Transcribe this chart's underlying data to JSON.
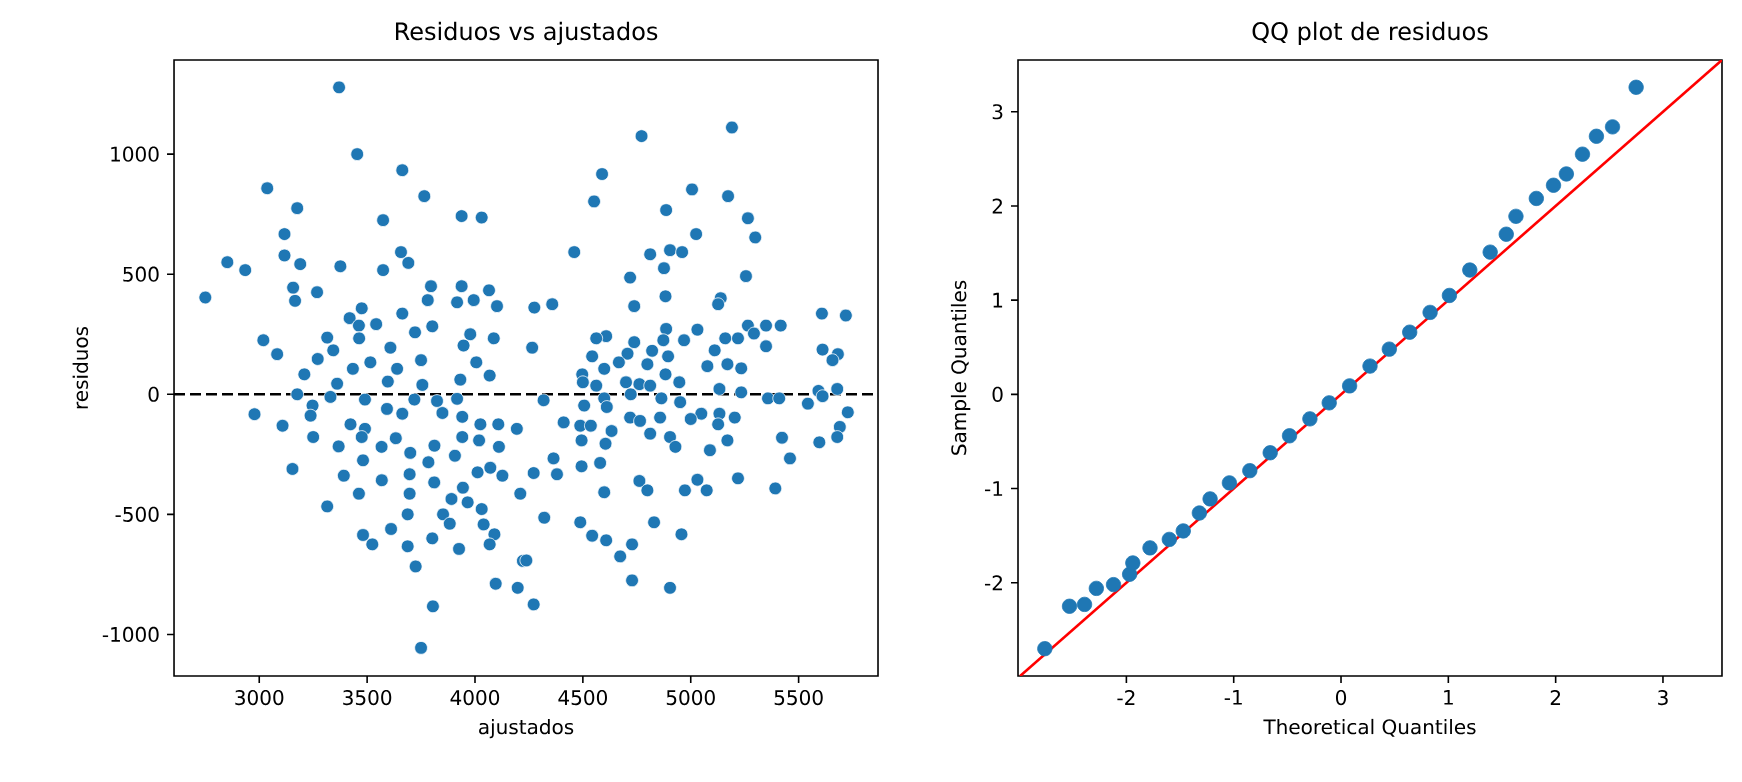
{
  "chart_data": [
    {
      "type": "scatter",
      "title": "Residuos vs ajustados",
      "xlabel": "ajustados",
      "ylabel": "residuos",
      "color": "#1f77b4",
      "marker": "circle",
      "xlim": [
        2605,
        5868
      ],
      "ylim": [
        -1173,
        1392
      ],
      "xticks": [
        3000,
        3500,
        4000,
        4500,
        5000,
        5500
      ],
      "yticks": [
        -1000,
        -500,
        0,
        500,
        1000
      ],
      "ref_lines": [
        {
          "axis": "y",
          "value": 0,
          "color": "#000000",
          "line_style": "dashed"
        }
      ],
      "x": [
        3370,
        3454,
        3663,
        3037,
        3765,
        3176,
        3938,
        4031,
        3574,
        3117,
        3117,
        2852,
        2935,
        3190,
        3376,
        3574,
        3657,
        3691,
        2750,
        3157,
        3166,
        3268,
        3796,
        3938,
        4065,
        4102,
        3781,
        3917,
        3994,
        3475,
        3419,
        3663,
        3462,
        3542,
        3722,
        3802,
        3978,
        4087,
        3019,
        3083,
        3315,
        3343,
        3463,
        3608,
        3750,
        3947,
        3271,
        3209,
        3434,
        3515,
        3639,
        4006,
        4068,
        3932,
        3596,
        3361,
        3176,
        3330,
        3756,
        2978,
        3108,
        3247,
        3238,
        3490,
        3592,
        3663,
        3719,
        3824,
        3917,
        3849,
        3941,
        3250,
        3423,
        3490,
        3475,
        3633,
        3812,
        3941,
        4025,
        4108,
        4019,
        4194,
        4111,
        3368,
        3567,
        3700,
        3784,
        3907,
        3481,
        3154,
        3392,
        3568,
        3697,
        3811,
        3944,
        4012,
        4071,
        4127,
        4210,
        3462,
        3697,
        3891,
        3966,
        4031,
        3315,
        3688,
        3852,
        3481,
        3611,
        3524,
        3802,
        3883,
        4040,
        4090,
        4068,
        3688,
        3926,
        3725,
        4222,
        4096,
        4198,
        3805,
        3750,
        4772,
        5191,
        4589,
        4552,
        5006,
        5173,
        4886,
        5265,
        5299,
        5025,
        4460,
        4812,
        4904,
        4960,
        4876,
        4719,
        5256,
        4883,
        4738,
        5139,
        5127,
        4275,
        4358,
        5608,
        5719,
        4265,
        5265,
        5349,
        5417,
        5293,
        5349,
        5031,
        4886,
        4608,
        4562,
        4969,
        5160,
        5219,
        4873,
        4738,
        4821,
        4707,
        4543,
        4667,
        5111,
        4895,
        4799,
        5077,
        5170,
        5234,
        5611,
        5682,
        5657,
        4599,
        4497,
        4883,
        4500,
        4562,
        4700,
        4762,
        4812,
        4947,
        5133,
        5234,
        5592,
        5679,
        4722,
        4864,
        4318,
        4599,
        4506,
        4951,
        4611,
        5358,
        5410,
        5543,
        5611,
        5728,
        5133,
        5204,
        4719,
        5049,
        4411,
        4488,
        4537,
        4765,
        4858,
        5000,
        5127,
        4633,
        4812,
        4904,
        4929,
        4494,
        4605,
        5170,
        5423,
        5691,
        5679,
        5596,
        5089,
        5460,
        4364,
        4272,
        4380,
        4580,
        4494,
        4762,
        4799,
        4599,
        4973,
        5031,
        5074,
        5219,
        5392,
        4321,
        4238,
        4272,
        4488,
        4543,
        4608,
        4830,
        4957,
        4673,
        4728,
        4728,
        4904
      ],
      "values": [
        1278,
        1000,
        933,
        858,
        825,
        775,
        742,
        736,
        725,
        667,
        578,
        550,
        517,
        542,
        533,
        517,
        592,
        547,
        403,
        444,
        389,
        425,
        450,
        450,
        433,
        367,
        392,
        383,
        392,
        358,
        317,
        336,
        286,
        292,
        258,
        283,
        250,
        233,
        225,
        167,
        236,
        183,
        233,
        194,
        142,
        203,
        147,
        83,
        106,
        133,
        106,
        133,
        78,
        61,
        53,
        44,
        0,
        -11,
        39,
        -83,
        -131,
        -47,
        -89,
        -22,
        -61,
        -81,
        -22,
        -28,
        -19,
        -78,
        -94,
        -178,
        -125,
        -144,
        -178,
        -183,
        -214,
        -178,
        -125,
        -125,
        -192,
        -144,
        -219,
        -217,
        -219,
        -244,
        -283,
        -256,
        -275,
        -311,
        -339,
        -358,
        -333,
        -367,
        -389,
        -325,
        -306,
        -339,
        -414,
        -414,
        -414,
        -436,
        -450,
        -478,
        -467,
        -500,
        -500,
        -586,
        -561,
        -625,
        -600,
        -539,
        -542,
        -583,
        -625,
        -633,
        -644,
        -717,
        -694,
        -789,
        -806,
        -883,
        -1056,
        1075,
        1111,
        917,
        803,
        853,
        825,
        767,
        733,
        653,
        667,
        592,
        583,
        600,
        592,
        525,
        486,
        492,
        408,
        367,
        400,
        375,
        361,
        375,
        336,
        328,
        194,
        286,
        286,
        286,
        253,
        200,
        269,
        272,
        242,
        233,
        225,
        233,
        233,
        225,
        217,
        181,
        169,
        158,
        133,
        183,
        158,
        125,
        117,
        125,
        108,
        186,
        167,
        142,
        106,
        83,
        83,
        50,
        36,
        50,
        42,
        36,
        50,
        22,
        8,
        14,
        22,
        0,
        -17,
        -25,
        -17,
        -47,
        -33,
        -53,
        -17,
        -17,
        -39,
        -8,
        -75,
        -81,
        -97,
        -97,
        -81,
        -117,
        -131,
        -131,
        -111,
        -97,
        -103,
        -125,
        -153,
        -164,
        -178,
        -219,
        -192,
        -206,
        -192,
        -181,
        -136,
        -178,
        -200,
        -233,
        -267,
        -267,
        -328,
        -333,
        -286,
        -300,
        -361,
        -400,
        -408,
        -400,
        -356,
        -400,
        -350,
        -392,
        -514,
        -692,
        -875,
        -533,
        -589,
        -608,
        -533,
        -583,
        -675,
        -625,
        -775,
        -806
      ]
    },
    {
      "type": "scatter",
      "title": "QQ plot de residuos",
      "xlabel": "Theoretical Quantiles",
      "ylabel": "Sample Quantiles",
      "xlim": [
        -3.01,
        3.55
      ],
      "ylim": [
        -2.99,
        3.55
      ],
      "xticks": [
        -2,
        -1,
        0,
        1,
        2,
        3
      ],
      "yticks": [
        -2,
        -1,
        0,
        1,
        2,
        3
      ],
      "series": [
        {
          "type": "scatter",
          "color": "#1f77b4",
          "marker": "circle",
          "x": [
            -2.76,
            -2.53,
            -2.39,
            -2.28,
            -2.12,
            -1.97,
            -1.94,
            -1.78,
            -1.6,
            -1.47,
            -1.32,
            -1.22,
            -1.04,
            -0.85,
            -0.66,
            -0.48,
            -0.29,
            -0.11,
            0.08,
            0.27,
            0.45,
            0.64,
            0.83,
            1.01,
            1.2,
            1.39,
            1.54,
            1.63,
            1.82,
            1.98,
            2.1,
            2.25,
            2.38,
            2.53,
            2.75
          ],
          "values": [
            -2.7,
            -2.25,
            -2.23,
            -2.06,
            -2.02,
            -1.91,
            -1.79,
            -1.63,
            -1.54,
            -1.45,
            -1.26,
            -1.11,
            -0.94,
            -0.81,
            -0.62,
            -0.44,
            -0.26,
            -0.09,
            0.09,
            0.3,
            0.48,
            0.66,
            0.87,
            1.05,
            1.32,
            1.51,
            1.7,
            1.89,
            2.08,
            2.22,
            2.34,
            2.55,
            2.74,
            2.84,
            3.26
          ]
        },
        {
          "type": "line",
          "color": "#ff0000",
          "x": [
            -2.99,
            3.55
          ],
          "values": [
            -2.99,
            3.55
          ]
        }
      ]
    }
  ]
}
